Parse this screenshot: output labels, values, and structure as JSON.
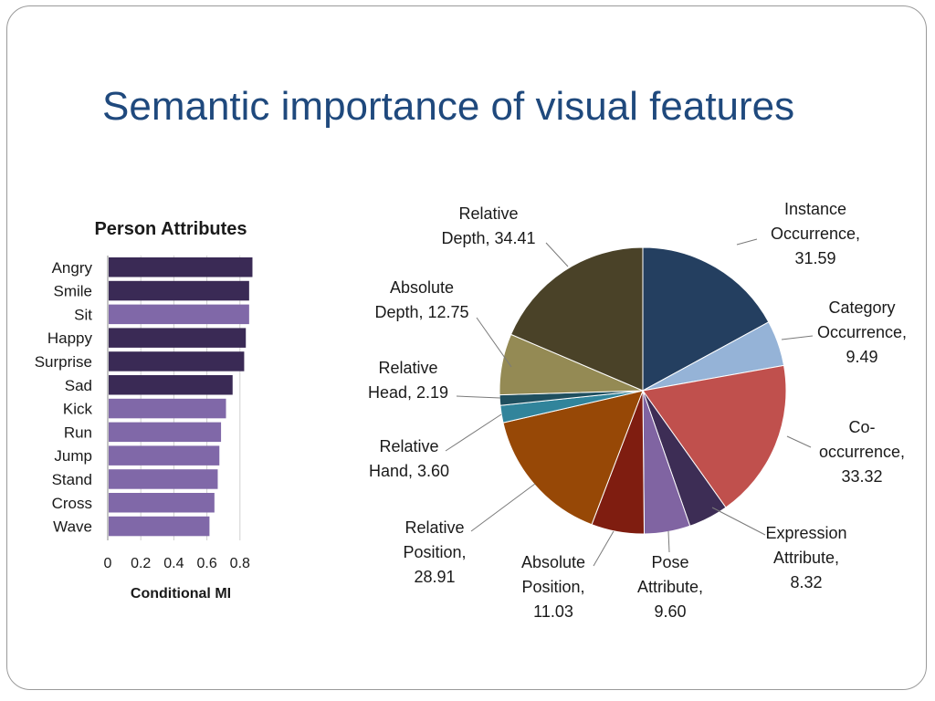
{
  "slide": {
    "title": "Semantic importance of visual features"
  },
  "chart_data": [
    {
      "type": "bar",
      "orientation": "horizontal",
      "title": "Person Attributes",
      "xlabel": "Conditional MI",
      "ylabel": "",
      "xlim": [
        0,
        0.9
      ],
      "x_ticks": [
        "0",
        "0.2",
        "0.4",
        "0.6",
        "0.8"
      ],
      "grid": true,
      "categories": [
        "Angry",
        "Smile",
        "Sit",
        "Happy",
        "Surprise",
        "Sad",
        "Kick",
        "Run",
        "Jump",
        "Stand",
        "Cross",
        "Wave"
      ],
      "values": [
        0.87,
        0.85,
        0.85,
        0.83,
        0.82,
        0.75,
        0.71,
        0.68,
        0.67,
        0.66,
        0.64,
        0.61
      ],
      "colors": [
        "#3a2a55",
        "#3a2a55",
        "#8068a8",
        "#3a2a55",
        "#3a2a55",
        "#3a2a55",
        "#8068a8",
        "#8068a8",
        "#8068a8",
        "#8068a8",
        "#8068a8",
        "#8068a8"
      ]
    },
    {
      "type": "pie",
      "title": "",
      "slices": [
        {
          "label": [
            "Instance",
            "Occurrence,",
            "31.59"
          ],
          "value": 31.59,
          "color": "#243f60"
        },
        {
          "label": [
            "Category",
            "Occurrence,",
            "9.49"
          ],
          "value": 9.49,
          "color": "#95b3d7"
        },
        {
          "label": [
            "Co-",
            "occurrence,",
            "33.32"
          ],
          "value": 33.32,
          "color": "#c0504d"
        },
        {
          "label": [
            "Expression",
            "Attribute,",
            "8.32"
          ],
          "value": 8.32,
          "color": "#3d2d55"
        },
        {
          "label": [
            "Pose",
            "Attribute,",
            "9.60"
          ],
          "value": 9.6,
          "color": "#8064a2"
        },
        {
          "label": [
            "Absolute",
            "Position,",
            "11.03"
          ],
          "value": 11.03,
          "color": "#7f1d10"
        },
        {
          "label": [
            "Relative",
            "Position,",
            "28.91"
          ],
          "value": 28.91,
          "color": "#974806"
        },
        {
          "label": [
            "Relative",
            "Hand, 3.60"
          ],
          "value": 3.6,
          "color": "#31849b"
        },
        {
          "label": [
            "Relative",
            "Head, 2.19"
          ],
          "value": 2.19,
          "color": "#1f4f5f"
        },
        {
          "label": [
            "Absolute",
            "Depth, 12.75"
          ],
          "value": 12.75,
          "color": "#948a54"
        },
        {
          "label": [
            "Relative",
            "Depth, 34.41"
          ],
          "value": 34.41,
          "color": "#4a4228"
        }
      ]
    }
  ]
}
